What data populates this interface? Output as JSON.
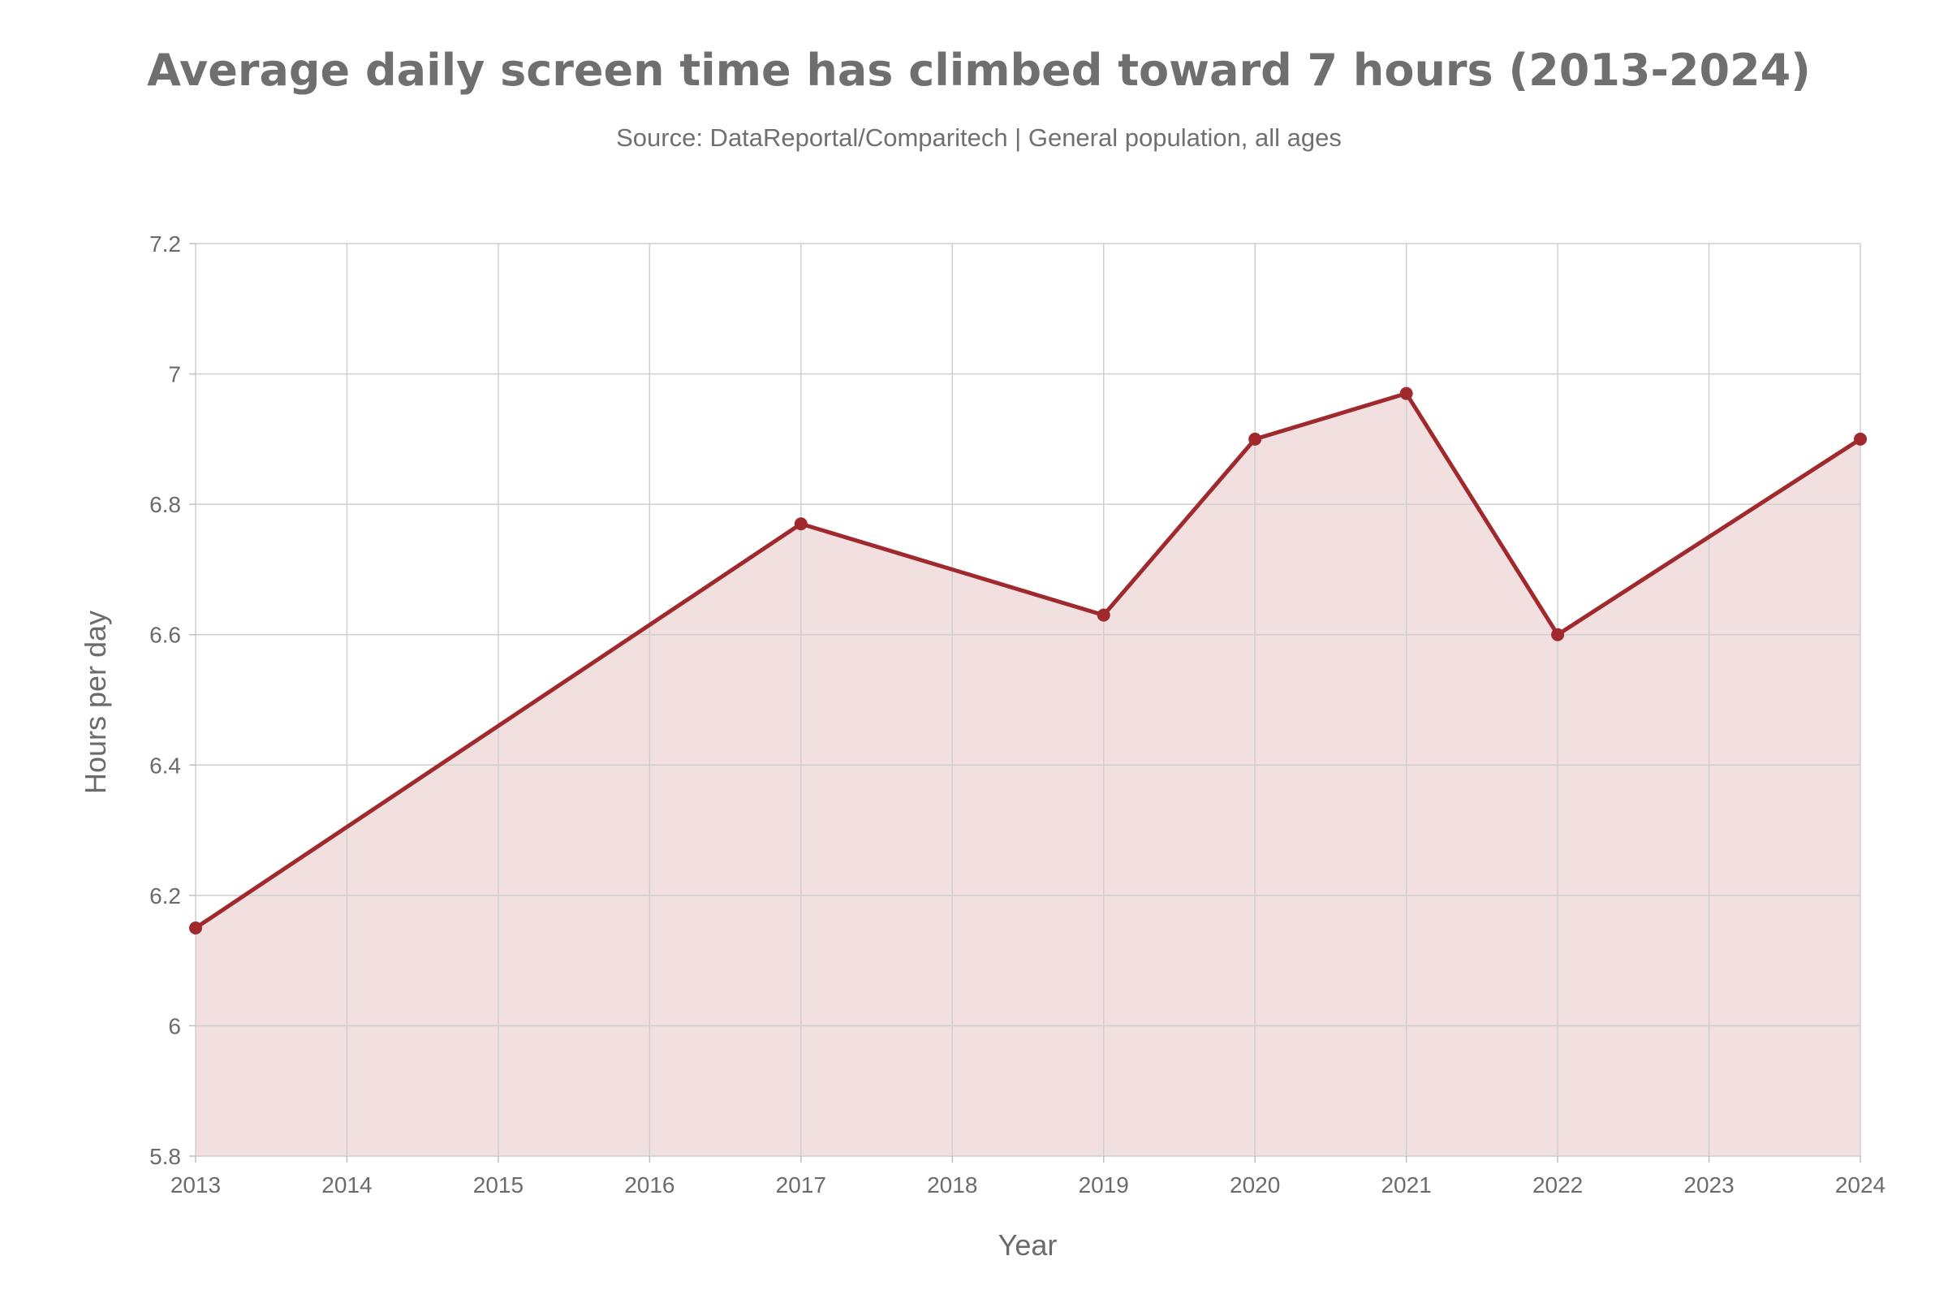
{
  "chart_data": {
    "type": "area",
    "title": "Average daily screen time has climbed toward 7 hours (2013-2024)",
    "subtitle": "Source: DataReportal/Comparitech | General population, all ages",
    "xlabel": "Year",
    "ylabel": "Hours per day",
    "x_ticks": [
      "2013",
      "2014",
      "2015",
      "2016",
      "2017",
      "2018",
      "2019",
      "2020",
      "2021",
      "2022",
      "2023",
      "2024"
    ],
    "y_ticks": [
      "5.8",
      "6",
      "6.2",
      "6.4",
      "6.6",
      "6.8",
      "7",
      "7.2"
    ],
    "xlim": [
      2013,
      2024
    ],
    "ylim": [
      5.8,
      7.2
    ],
    "grid": true,
    "x": [
      2013,
      2017,
      2019,
      2020,
      2021,
      2022,
      2024
    ],
    "y": [
      6.15,
      6.77,
      6.63,
      6.9,
      6.97,
      6.6,
      6.9
    ],
    "colors": {
      "line": "#a0292e",
      "fill": "#f2dfe0",
      "marker": "#a0292e"
    }
  }
}
